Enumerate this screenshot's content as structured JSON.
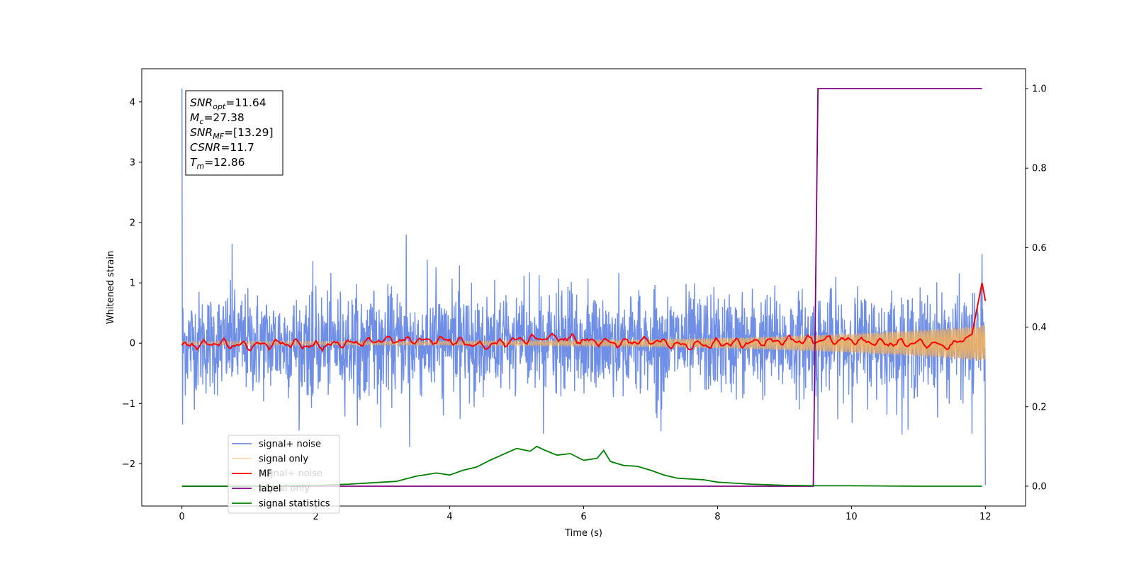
{
  "chart_data": {
    "type": "line",
    "xlabel": "Time (s)",
    "ylabel": "Whitened strain",
    "xlim": [
      -0.6,
      12.6
    ],
    "ylim": [
      -2.7,
      4.55
    ],
    "ylim_right": [
      -0.05,
      1.05
    ],
    "x_ticks": [
      0,
      2,
      4,
      6,
      8,
      10,
      12
    ],
    "y_ticks": [
      -2,
      -1,
      0,
      1,
      2,
      3,
      4
    ],
    "y_ticks_right": [
      0.0,
      0.2,
      0.4,
      0.6,
      0.8,
      1.0
    ],
    "grid": false,
    "legend_position": "lower-left",
    "legend": [
      "signal+ noise",
      "signal only",
      "MF",
      "label",
      "signal statistics"
    ],
    "legend_ghost": [
      "signal+ noise",
      "signal only"
    ],
    "colors": {
      "noise": "#6f8ee6",
      "signal": "#f5b25a",
      "mf": "#ff0000",
      "label": "#800080",
      "stats": "#008000"
    },
    "annotation": {
      "snr_opt": {
        "symbol": "SNR",
        "sub": "opt",
        "value": "=11.64"
      },
      "mc": {
        "symbol": "M",
        "sub": "c",
        "value": "=27.38"
      },
      "snr_mf": {
        "symbol": "SNR",
        "sub": "MF",
        "value": "=[13.29]"
      },
      "csnr": {
        "symbol": "CSNR",
        "sub": "",
        "value": "=11.7"
      },
      "tm": {
        "symbol": "T",
        "sub": "m",
        "value": "=12.86"
      }
    },
    "series": [
      {
        "name": "signal+ noise",
        "axis": "left",
        "style": "noise",
        "x_range": [
          0,
          12
        ],
        "std": 0.42,
        "spikes": [
          [
            0.0,
            4.22
          ],
          [
            0.01,
            -1.35
          ],
          [
            0.75,
            1.65
          ],
          [
            3.35,
            1.8
          ],
          [
            3.4,
            -1.72
          ],
          [
            5.4,
            -1.5
          ],
          [
            9.5,
            -1.6
          ],
          [
            11.8,
            -1.5
          ],
          [
            11.95,
            1.48
          ],
          [
            12.0,
            -2.35
          ]
        ]
      },
      {
        "name": "signal only",
        "axis": "left",
        "style": "chirp",
        "x_range": [
          0,
          12
        ],
        "amplitude_start": 0.03,
        "amplitude_end": 0.3
      },
      {
        "name": "MF",
        "axis": "left",
        "x": [
          0,
          0.5,
          1,
          1.5,
          2,
          2.5,
          3,
          3.5,
          4,
          4.5,
          5,
          5.5,
          6,
          6.5,
          7,
          7.5,
          8,
          8.5,
          9,
          9.5,
          10,
          10.5,
          11,
          11.5,
          11.8,
          11.95,
          12
        ],
        "y": [
          -0.05,
          0.0,
          -0.05,
          0.0,
          -0.05,
          0.0,
          0.05,
          0.05,
          0.05,
          -0.05,
          0.05,
          0.1,
          0.05,
          0.0,
          0.05,
          -0.05,
          0.0,
          0.0,
          0.05,
          0.05,
          0.05,
          0.0,
          0.0,
          -0.05,
          0.15,
          1.0,
          0.7
        ]
      },
      {
        "name": "label",
        "axis": "right",
        "x": [
          0,
          9.43,
          9.5,
          11.95
        ],
        "y": [
          0,
          0,
          1.0,
          1.0
        ]
      },
      {
        "name": "signal statistics",
        "axis": "right",
        "x": [
          0,
          1,
          2,
          2.5,
          3,
          3.2,
          3.5,
          3.8,
          4,
          4.2,
          4.4,
          4.6,
          4.8,
          5,
          5.2,
          5.3,
          5.4,
          5.6,
          5.8,
          6,
          6.2,
          6.3,
          6.4,
          6.6,
          6.8,
          7,
          7.2,
          7.4,
          7.6,
          7.8,
          8,
          8.5,
          9,
          9.5,
          10,
          11,
          11.95
        ],
        "y": [
          0.0,
          0.0,
          0.002,
          0.005,
          0.01,
          0.012,
          0.025,
          0.033,
          0.028,
          0.04,
          0.048,
          0.065,
          0.08,
          0.095,
          0.088,
          0.1,
          0.092,
          0.078,
          0.082,
          0.065,
          0.07,
          0.09,
          0.062,
          0.052,
          0.05,
          0.04,
          0.028,
          0.02,
          0.018,
          0.016,
          0.01,
          0.005,
          0.002,
          0.001,
          0.001,
          0.0,
          0.0
        ]
      }
    ]
  }
}
